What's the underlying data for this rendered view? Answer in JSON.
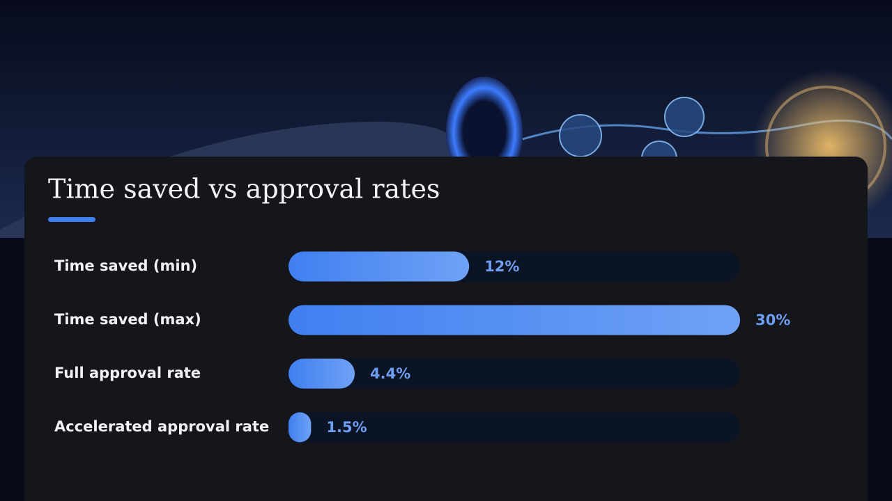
{
  "chart_data": {
    "type": "bar",
    "orientation": "horizontal",
    "title": "Time saved vs approval rates",
    "categories": [
      "Time saved (min)",
      "Time saved (max)",
      "Full approval rate",
      "Accelerated approval rate"
    ],
    "values": [
      12,
      30,
      4.4,
      1.5
    ],
    "value_labels": [
      "12%",
      "30%",
      "4.4%",
      "1.5%"
    ],
    "xlim": [
      0,
      30
    ],
    "color": "#4a88f2"
  }
}
